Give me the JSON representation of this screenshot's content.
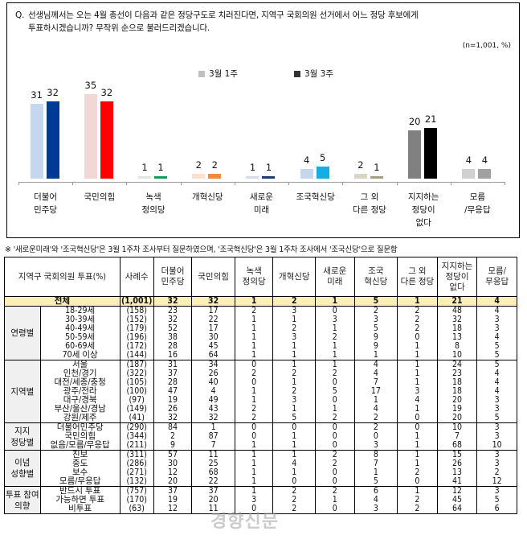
{
  "question": {
    "mark": "Q.",
    "line1": "선생님께서는 오는 4월 총선이 다음과 같은 정당구도로 치러진다면, 지역구 국회의원 선거에서 어느 정당 후보에게",
    "line2": "투표하시겠습니까? 무작위 순으로 불러드리겠습니다.",
    "sample_note": "(n=1,001,  %)"
  },
  "legend": [
    {
      "label": "3월 1주",
      "color": "#c0c0c0"
    },
    {
      "label": "3월 3주",
      "color": "#333333"
    }
  ],
  "chart_data": {
    "type": "bar",
    "title": "지역구 국회의원 투표 정당",
    "categories": [
      "더불어\n민주당",
      "국민의힘",
      "녹색\n정의당",
      "개혁신당",
      "새로운\n미래",
      "조국혁신당",
      "그 외\n다른 정당",
      "지지하는\n정당이\n없다",
      "모름\n/무응답"
    ],
    "series": [
      {
        "name": "3월 1주",
        "values": [
          31,
          35,
          1,
          2,
          1,
          4,
          2,
          20,
          4
        ]
      },
      {
        "name": "3월 3주",
        "values": [
          32,
          32,
          1,
          2,
          1,
          5,
          1,
          21,
          4
        ]
      }
    ],
    "colors_week1": [
      "#c5d7ee",
      "#f2d7d7",
      "#dfe8df",
      "#fbe0cf",
      "#d6dcea",
      "#c5d7ee",
      "#d9d6c5",
      "#808080",
      "#d0d0d0"
    ],
    "colors_week3": [
      "#003a96",
      "#ff0000",
      "#1a9a5a",
      "#f28a3c",
      "#1c3b7a",
      "#14aee6",
      "#a49f80",
      "#000000",
      "#a0a0a0"
    ],
    "xlabel": "",
    "ylabel": "%",
    "ylim": [
      0,
      40
    ],
    "grid": false,
    "legend_position": "top",
    "unit_note": "(n=1,001, %)"
  },
  "footnote": "※ '새로운미래'와 '조국혁신당'은 3월 1주차 조사부터 질문하였으며, '조국혁신당'은 3월 1주차 조사에서 '조국신당'으로 질문함",
  "table": {
    "headers": [
      "지역구 국회의원 투표(%)",
      "사례수",
      "더불어\n민주당",
      "국민의힘",
      "녹색\n정의당",
      "개혁신당",
      "새로운\n미래",
      "조국\n혁신당",
      "그 외\n다른 정당",
      "지지하는\n정당이\n없다",
      "모름/\n무응답"
    ],
    "total": {
      "label": "전체",
      "n": "(1,001)",
      "values": [
        "32",
        "32",
        "1",
        "2",
        "1",
        "5",
        "1",
        "21",
        "4"
      ]
    },
    "groups": [
      {
        "label": "연령별",
        "rows": [
          {
            "label": "18-29세",
            "n": "(158)",
            "values": [
              "23",
              "17",
              "2",
              "3",
              "0",
              "2",
              "2",
              "48",
              "4"
            ]
          },
          {
            "label": "30-39세",
            "n": "(152)",
            "values": [
              "32",
              "22",
              "1",
              "1",
              "3",
              "3",
              "2",
              "32",
              "3"
            ]
          },
          {
            "label": "40-49세",
            "n": "(179)",
            "values": [
              "52",
              "17",
              "1",
              "2",
              "1",
              "5",
              "2",
              "18",
              "3"
            ]
          },
          {
            "label": "50-59세",
            "n": "(196)",
            "values": [
              "38",
              "30",
              "1",
              "3",
              "2",
              "9",
              "0",
              "13",
              "4"
            ]
          },
          {
            "label": "60-69세",
            "n": "(172)",
            "values": [
              "28",
              "45",
              "1",
              "1",
              "1",
              "9",
              "1",
              "8",
              "5"
            ]
          },
          {
            "label": "70세 이상",
            "n": "(144)",
            "values": [
              "16",
              "64",
              "1",
              "1",
              "1",
              "1",
              "1",
              "10",
              "5"
            ]
          }
        ]
      },
      {
        "label": "지역별",
        "rows": [
          {
            "label": "서울",
            "n": "(187)",
            "values": [
              "31",
              "34",
              "0",
              "1",
              "1",
              "4",
              "1",
              "24",
              "5"
            ]
          },
          {
            "label": "인천/경기",
            "n": "(322)",
            "values": [
              "37",
              "26",
              "2",
              "2",
              "2",
              "4",
              "1",
              "23",
              "4"
            ]
          },
          {
            "label": "대전/세종/충청",
            "n": "(105)",
            "values": [
              "28",
              "40",
              "0",
              "1",
              "0",
              "7",
              "1",
              "18",
              "4"
            ]
          },
          {
            "label": "광주/전라",
            "n": "(100)",
            "values": [
              "47",
              "4",
              "1",
              "2",
              "5",
              "17",
              "3",
              "18",
              "4"
            ]
          },
          {
            "label": "대구/경북",
            "n": "(97)",
            "values": [
              "19",
              "49",
              "1",
              "3",
              "0",
              "1",
              "4",
              "20",
              "3"
            ]
          },
          {
            "label": "부산/울산/경남",
            "n": "(149)",
            "values": [
              "26",
              "43",
              "2",
              "1",
              "1",
              "4",
              "1",
              "19",
              "3"
            ]
          },
          {
            "label": "강원/제주",
            "n": "(41)",
            "values": [
              "32",
              "32",
              "2",
              "5",
              "2",
              "2",
              "0",
              "20",
              "5"
            ]
          }
        ]
      },
      {
        "label": "지지\n정당별",
        "rows": [
          {
            "label": "더불어민주당",
            "n": "(290)",
            "values": [
              "84",
              "1",
              "0",
              "0",
              "0",
              "2",
              "0",
              "10",
              "3"
            ]
          },
          {
            "label": "국민의힘",
            "n": "(344)",
            "values": [
              "2",
              "87",
              "0",
              "1",
              "0",
              "0",
              "1",
              "7",
              "3"
            ]
          },
          {
            "label": "없음/모름/무응답",
            "n": "(211)",
            "values": [
              "9",
              "7",
              "1",
              "1",
              "0",
              "3",
              "1",
              "68",
              "10"
            ]
          }
        ]
      },
      {
        "label": "이념\n성향별",
        "rows": [
          {
            "label": "진보",
            "n": "(311)",
            "values": [
              "57",
              "11",
              "1",
              "1",
              "2",
              "8",
              "1",
              "15",
              "3"
            ]
          },
          {
            "label": "중도",
            "n": "(286)",
            "values": [
              "30",
              "25",
              "1",
              "4",
              "2",
              "7",
              "1",
              "26",
              "3"
            ]
          },
          {
            "label": "보수",
            "n": "(271)",
            "values": [
              "12",
              "68",
              "1",
              "1",
              "0",
              "1",
              "2",
              "13",
              "2"
            ]
          },
          {
            "label": "모름/무응답",
            "n": "(132)",
            "values": [
              "20",
              "22",
              "1",
              "0",
              "0",
              "5",
              "0",
              "41",
              "12"
            ]
          }
        ]
      },
      {
        "label": "투표 참여\n의향",
        "rows": [
          {
            "label": "반드시 투표",
            "n": "(757)",
            "values": [
              "37",
              "37",
              "1",
              "2",
              "2",
              "6",
              "1",
              "12",
              "3"
            ]
          },
          {
            "label": "가능하면 투표",
            "n": "(170)",
            "values": [
              "19",
              "20",
              "3",
              "2",
              "1",
              "4",
              "2",
              "45",
              "5"
            ]
          },
          {
            "label": "비투표",
            "n": "(63)",
            "values": [
              "12",
              "11",
              "0",
              "2",
              "0",
              "3",
              "2",
              "64",
              "6"
            ]
          }
        ]
      }
    ]
  },
  "watermark": "경향신문"
}
